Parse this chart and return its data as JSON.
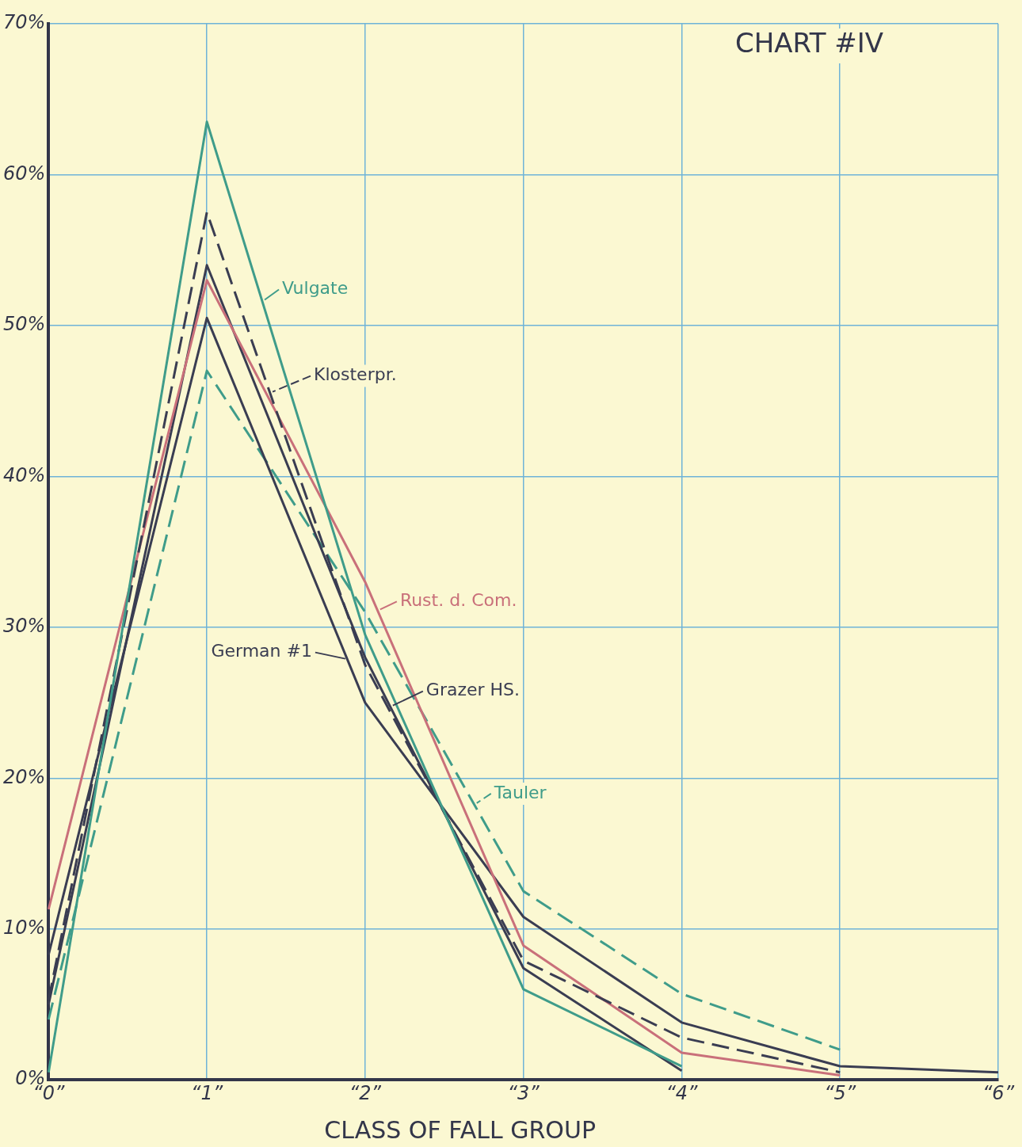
{
  "chart_data": {
    "type": "line",
    "title": "CHART #IV",
    "xlabel": "CLASS OF FALL GROUP",
    "categories": [
      "“0”",
      "“1”",
      "“2”",
      "“3”",
      "“4”",
      "“5”",
      "“6”"
    ],
    "ylim": [
      0,
      70
    ],
    "yticks": [
      {
        "value": 0,
        "label": "0%"
      },
      {
        "value": 10,
        "label": "10%"
      },
      {
        "value": 20,
        "label": "20%"
      },
      {
        "value": 30,
        "label": "30%"
      },
      {
        "value": 40,
        "label": "40%"
      },
      {
        "value": 50,
        "label": "50%"
      },
      {
        "value": 60,
        "label": "60%"
      },
      {
        "value": 70,
        "label": "70%"
      }
    ],
    "grid": true,
    "legend": "center",
    "marker": "none",
    "series": [
      {
        "name": "Vulgate",
        "color": "#3f9c8a",
        "line_style": "solid",
        "values": [
          0.5,
          63.5,
          29.5,
          6.0,
          0.9,
          null,
          null
        ]
      },
      {
        "name": "Klosterpr.",
        "color": "#3a3d52",
        "line_style": "dashed",
        "values": [
          5.3,
          57.5,
          27.5,
          7.9,
          2.8,
          0.5,
          null
        ]
      },
      {
        "name": "Rust. d. Com.",
        "color": "#c9707a",
        "line_style": "solid",
        "values": [
          11.3,
          53,
          33,
          8.9,
          1.8,
          0.3,
          null
        ]
      },
      {
        "name": "German #1",
        "color": "#3a3d52",
        "line_style": "solid",
        "values": [
          8.3,
          50.5,
          25,
          10.8,
          3.8,
          0.9,
          0.5
        ]
      },
      {
        "name": "Grazer HS.",
        "color": "#3a3d52",
        "line_style": "solid",
        "values": [
          5,
          54,
          28,
          7.4,
          0.6,
          null,
          null
        ]
      },
      {
        "name": "Tauler",
        "color": "#3f9c8a",
        "line_style": "dashed",
        "values": [
          4,
          47,
          31,
          12.5,
          5.7,
          2.0,
          null
        ]
      }
    ]
  }
}
